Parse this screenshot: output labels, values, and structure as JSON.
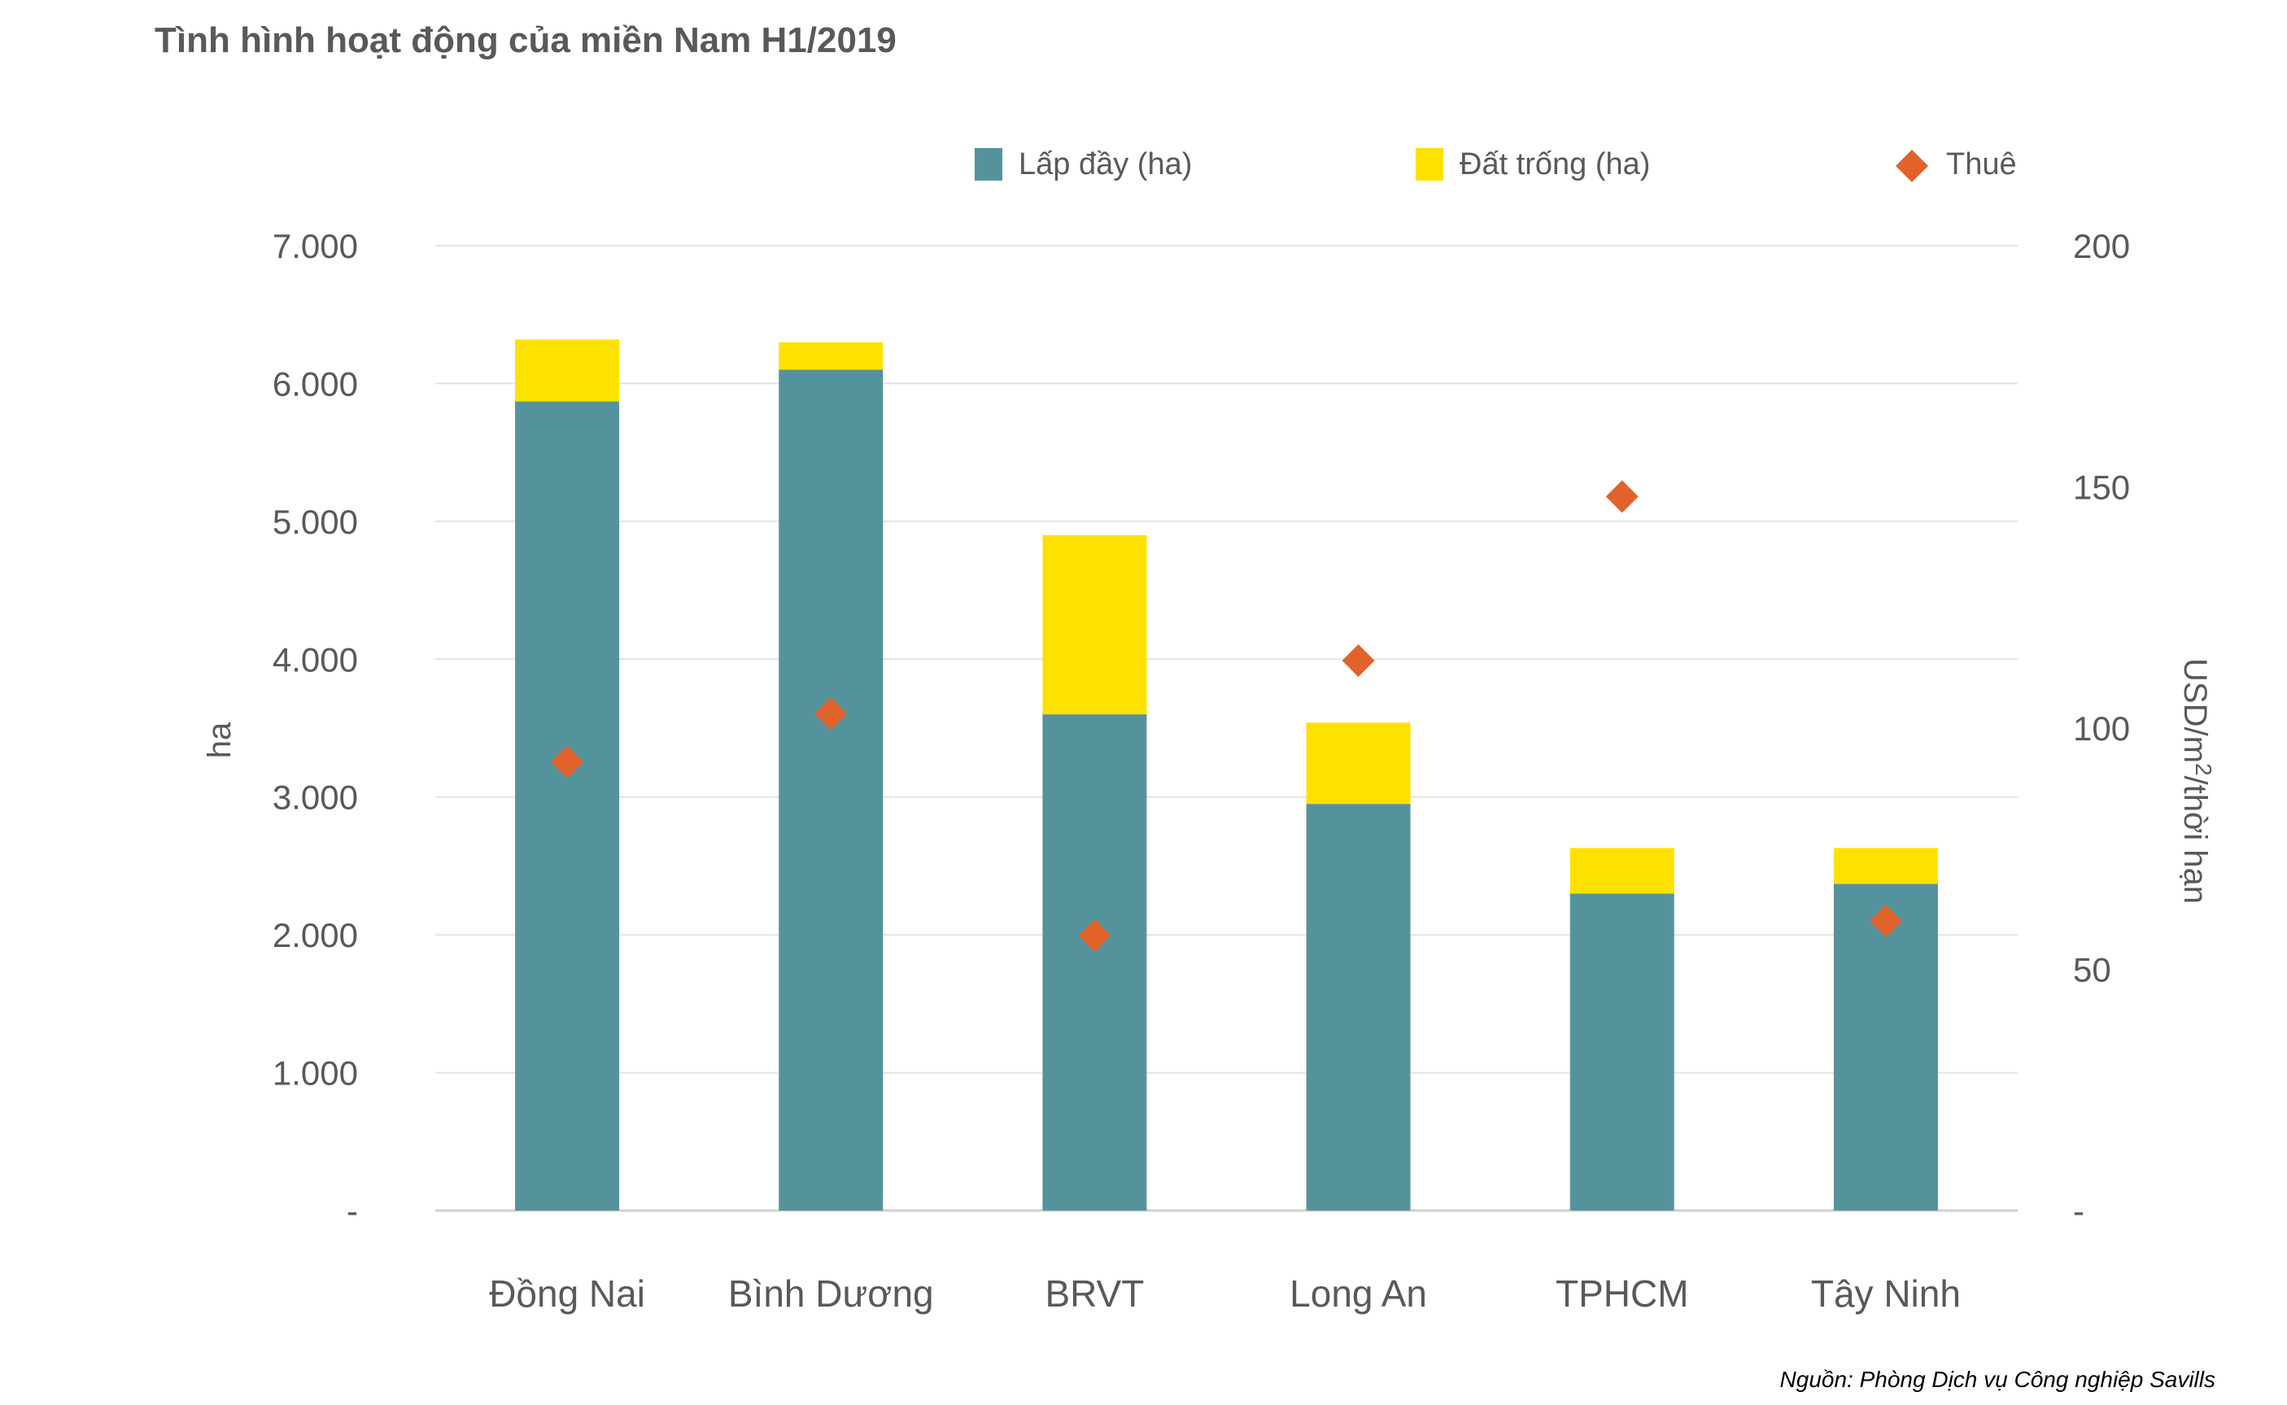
{
  "chart_data": {
    "type": "bar",
    "stacked": true,
    "title": "Tình hình hoạt động của miền Nam H1/2019",
    "categories": [
      "Đồng Nai",
      "Bình Dương",
      "BRVT",
      "Long An",
      "TPHCM",
      "Tây Ninh"
    ],
    "series": [
      {
        "name": "Lấp đầy (ha)",
        "axis": "left",
        "kind": "bar",
        "color": "#55939C",
        "values": [
          5870,
          6100,
          3600,
          2950,
          2300,
          2370
        ]
      },
      {
        "name": "Đất trống (ha)",
        "axis": "left",
        "kind": "bar",
        "color": "#FFE100",
        "values": [
          450,
          200,
          1300,
          590,
          330,
          260
        ]
      },
      {
        "name": "Thuê",
        "axis": "right",
        "kind": "scatter",
        "marker": "diamond",
        "color": "#E2622B",
        "values": [
          93,
          103,
          57,
          114,
          148,
          60
        ]
      }
    ],
    "ylabel": "ha",
    "ylim": [
      0,
      7000
    ],
    "yticks": [
      "-",
      "1.000",
      "2.000",
      "3.000",
      "4.000",
      "5.000",
      "6.000",
      "7.000"
    ],
    "y2label": "USD/m²/thời hạn",
    "y2label_main": "USD/m",
    "y2label_sup": "2",
    "y2label_rest": "/thời hạn",
    "y2lim": [
      0,
      200
    ],
    "y2ticks": [
      "-",
      "50",
      "100",
      "150",
      "200"
    ],
    "grid": true,
    "legend_position": "top-right",
    "source": "Nguồn: Phòng Dịch vụ Công nghiệp Savills"
  }
}
